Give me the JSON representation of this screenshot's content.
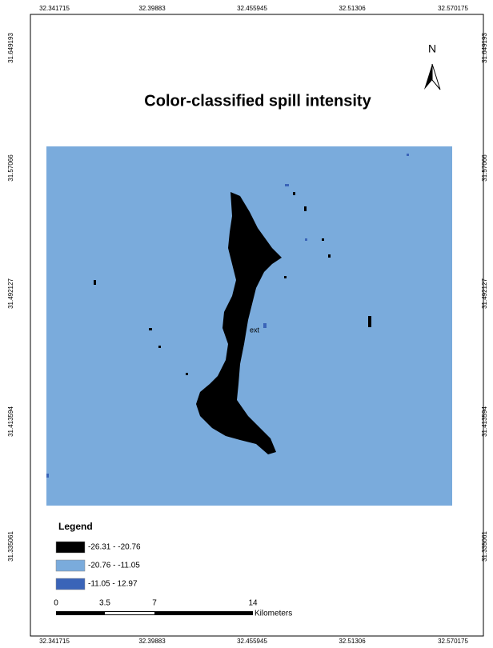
{
  "title": "Color-classified spill intensity",
  "north_label": "N",
  "map_label": "ext",
  "top_coords": [
    "32.341715",
    "32.39883",
    "32.455945",
    "32.51306",
    "32.570175"
  ],
  "bottom_coords": [
    "32.341715",
    "32.39883",
    "32.455945",
    "32.51306",
    "32.570175"
  ],
  "left_coords": [
    "31.649193",
    "31.57066",
    "31.492127",
    "31.413594",
    "31.335061"
  ],
  "right_coords": [
    "31.649193",
    "31.57066",
    "31.492127",
    "31.413594",
    "31.335061"
  ],
  "legend": {
    "title": "Legend",
    "items": [
      {
        "label": "-26.31 - -20.76",
        "color": "#000000"
      },
      {
        "label": "-20.76 - -11.05",
        "color": "#7aabdc"
      },
      {
        "label": "-11.05 - 12.97",
        "color": "#3a64b8"
      }
    ]
  },
  "scale_bar": {
    "labels": [
      "0",
      "3.5",
      "7",
      "14"
    ],
    "unit": "Kilometers"
  }
}
